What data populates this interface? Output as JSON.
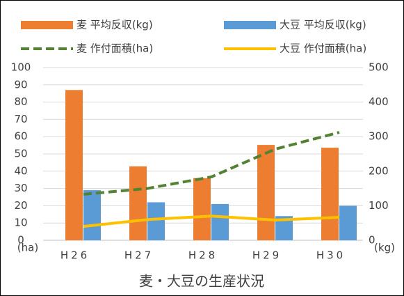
{
  "chart_data": {
    "type": "bar",
    "title": "麦・大豆の生産状況",
    "categories": [
      "H26",
      "H27",
      "H28",
      "H29",
      "H30"
    ],
    "series": [
      {
        "name": "麦 平均反収(kg)",
        "type": "bar",
        "color": "#ed7d31",
        "axis": "y2",
        "values": [
          435,
          214,
          180,
          276,
          268
        ]
      },
      {
        "name": "大豆 平均反収(kg)",
        "type": "bar",
        "color": "#5b9bd5",
        "axis": "y2",
        "values": [
          145,
          110,
          105,
          70,
          100
        ]
      },
      {
        "name": "麦 作付面積(ha)",
        "type": "line",
        "style": "dashed",
        "color": "#548235",
        "axis": "y",
        "values": [
          26.6,
          30,
          36.7,
          52.8,
          62.5
        ]
      },
      {
        "name": "大豆 作付面積(ha)",
        "type": "line",
        "style": "solid",
        "color": "#ffc000",
        "axis": "y",
        "values": [
          8,
          12,
          14,
          11.7,
          13.3
        ]
      }
    ],
    "ylabel": "(ha)",
    "y2label": "(kg)",
    "ylim": [
      0,
      100
    ],
    "yticks": [
      0,
      10,
      20,
      30,
      40,
      50,
      60,
      70,
      80,
      90,
      100
    ],
    "y2lim": [
      0,
      500
    ],
    "y2ticks": [
      0,
      100,
      200,
      300,
      400,
      500
    ],
    "grid": true,
    "legend": "top"
  }
}
